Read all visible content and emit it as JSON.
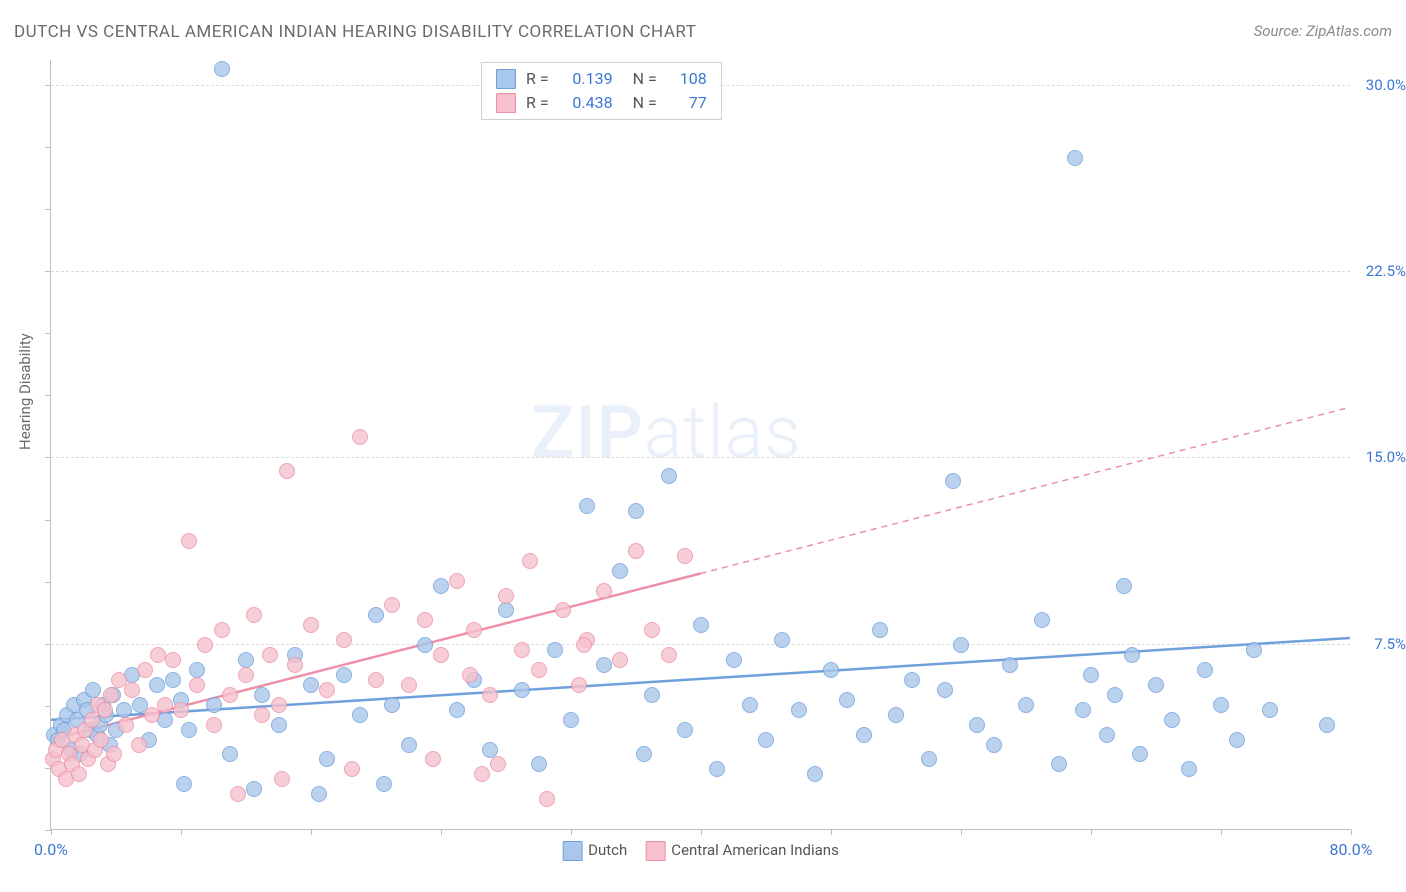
{
  "title": "DUTCH VS CENTRAL AMERICAN INDIAN HEARING DISABILITY CORRELATION CHART",
  "source": "Source: ZipAtlas.com",
  "ylabel": "Hearing Disability",
  "watermark": {
    "bold": "ZIP",
    "light": "atlas"
  },
  "chart": {
    "type": "scatter",
    "background_color": "#ffffff",
    "grid_color": "#dcdcdc",
    "axis_color": "#c0c0c0",
    "text_color": "#6b6b6b",
    "xlim": [
      0,
      80
    ],
    "ylim": [
      0,
      31
    ],
    "x_ticks": [
      0,
      8,
      16,
      24,
      32,
      40,
      48,
      56,
      64,
      72,
      80
    ],
    "x_labels": [
      {
        "value": 0,
        "text": "0.0%",
        "color": "#3b76d6"
      },
      {
        "value": 80,
        "text": "80.0%",
        "color": "#3b76d6"
      }
    ],
    "y_gridlines": [
      7.5,
      15.0,
      22.5,
      30.0
    ],
    "y_labels": [
      {
        "value": 7.5,
        "text": "7.5%",
        "color": "#3b76d6"
      },
      {
        "value": 15.0,
        "text": "15.0%",
        "color": "#3b76d6"
      },
      {
        "value": 22.5,
        "text": "22.5%",
        "color": "#3b76d6"
      },
      {
        "value": 30.0,
        "text": "30.0%",
        "color": "#3b76d6"
      }
    ],
    "y_ticks": [
      0,
      2.5,
      5,
      7.5,
      10,
      12.5,
      15,
      17.5,
      20,
      22.5,
      25,
      27.5,
      30
    ],
    "marker_radius": 8,
    "marker_opacity_fill": 0.35,
    "marker_opacity_stroke": 0.7,
    "series": [
      {
        "name": "Dutch",
        "color_fill": "#a9c7ea",
        "color_stroke": "#6fa0db",
        "R": "0.139",
        "N": "108",
        "regression": {
          "x1": 0,
          "y1": 4.4,
          "x2": 80,
          "y2": 7.7,
          "solid_to_x": 80
        },
        "points": [
          [
            0.2,
            3.8
          ],
          [
            0.4,
            3.6
          ],
          [
            0.6,
            4.2
          ],
          [
            0.8,
            4.0
          ],
          [
            1.0,
            4.6
          ],
          [
            1.2,
            3.2
          ],
          [
            1.4,
            5.0
          ],
          [
            1.6,
            4.4
          ],
          [
            1.8,
            3.0
          ],
          [
            2.0,
            5.2
          ],
          [
            2.2,
            4.8
          ],
          [
            2.4,
            4.0
          ],
          [
            2.6,
            5.6
          ],
          [
            2.8,
            3.8
          ],
          [
            3.0,
            4.2
          ],
          [
            3.2,
            5.0
          ],
          [
            3.4,
            4.6
          ],
          [
            3.6,
            3.4
          ],
          [
            3.8,
            5.4
          ],
          [
            4.0,
            4.0
          ],
          [
            4.5,
            4.8
          ],
          [
            5.0,
            6.2
          ],
          [
            5.5,
            5.0
          ],
          [
            6.0,
            3.6
          ],
          [
            6.5,
            5.8
          ],
          [
            7.0,
            4.4
          ],
          [
            7.5,
            6.0
          ],
          [
            8.0,
            5.2
          ],
          [
            8.5,
            4.0
          ],
          [
            9.0,
            6.4
          ],
          [
            10.0,
            5.0
          ],
          [
            11.0,
            3.0
          ],
          [
            12.0,
            6.8
          ],
          [
            13.0,
            5.4
          ],
          [
            14.0,
            4.2
          ],
          [
            15.0,
            7.0
          ],
          [
            16.0,
            5.8
          ],
          [
            17.0,
            2.8
          ],
          [
            18.0,
            6.2
          ],
          [
            19.0,
            4.6
          ],
          [
            20.0,
            8.6
          ],
          [
            21.0,
            5.0
          ],
          [
            22.0,
            3.4
          ],
          [
            23.0,
            7.4
          ],
          [
            24.0,
            9.8
          ],
          [
            25.0,
            4.8
          ],
          [
            26.0,
            6.0
          ],
          [
            27.0,
            3.2
          ],
          [
            28.0,
            8.8
          ],
          [
            29.0,
            5.6
          ],
          [
            30.0,
            2.6
          ],
          [
            31.0,
            7.2
          ],
          [
            32.0,
            4.4
          ],
          [
            33.0,
            13.0
          ],
          [
            34.0,
            6.6
          ],
          [
            35.0,
            10.4
          ],
          [
            36.0,
            12.8
          ],
          [
            36.5,
            3.0
          ],
          [
            37.0,
            5.4
          ],
          [
            38.0,
            14.2
          ],
          [
            39.0,
            4.0
          ],
          [
            40.0,
            8.2
          ],
          [
            41.0,
            2.4
          ],
          [
            42.0,
            6.8
          ],
          [
            43.0,
            5.0
          ],
          [
            44.0,
            3.6
          ],
          [
            45.0,
            7.6
          ],
          [
            46.0,
            4.8
          ],
          [
            47.0,
            2.2
          ],
          [
            48.0,
            6.4
          ],
          [
            49.0,
            5.2
          ],
          [
            50.0,
            3.8
          ],
          [
            51.0,
            8.0
          ],
          [
            52.0,
            4.6
          ],
          [
            53.0,
            6.0
          ],
          [
            54.0,
            2.8
          ],
          [
            55.0,
            5.6
          ],
          [
            55.5,
            14.0
          ],
          [
            56.0,
            7.4
          ],
          [
            57.0,
            4.2
          ],
          [
            58.0,
            3.4
          ],
          [
            59.0,
            6.6
          ],
          [
            60.0,
            5.0
          ],
          [
            61.0,
            8.4
          ],
          [
            62.0,
            2.6
          ],
          [
            63.0,
            27.0
          ],
          [
            63.5,
            4.8
          ],
          [
            64.0,
            6.2
          ],
          [
            65.0,
            3.8
          ],
          [
            65.5,
            5.4
          ],
          [
            66.0,
            9.8
          ],
          [
            66.5,
            7.0
          ],
          [
            67.0,
            3.0
          ],
          [
            68.0,
            5.8
          ],
          [
            69.0,
            4.4
          ],
          [
            70.0,
            2.4
          ],
          [
            71.0,
            6.4
          ],
          [
            72.0,
            5.0
          ],
          [
            73.0,
            3.6
          ],
          [
            74.0,
            7.2
          ],
          [
            75.0,
            4.8
          ],
          [
            29.5,
            30.4
          ],
          [
            10.5,
            30.6
          ],
          [
            78.5,
            4.2
          ],
          [
            8.2,
            1.8
          ],
          [
            12.5,
            1.6
          ],
          [
            16.5,
            1.4
          ],
          [
            20.5,
            1.8
          ]
        ]
      },
      {
        "name": "Central American Indians",
        "color_fill": "#f6c1cd",
        "color_stroke": "#ec8fa7",
        "R": "0.438",
        "N": "77",
        "regression": {
          "x1": 0,
          "y1": 3.6,
          "x2": 80,
          "y2": 17.0,
          "solid_to_x": 40
        },
        "points": [
          [
            0.1,
            2.8
          ],
          [
            0.3,
            3.2
          ],
          [
            0.5,
            2.4
          ],
          [
            0.7,
            3.6
          ],
          [
            0.9,
            2.0
          ],
          [
            1.1,
            3.0
          ],
          [
            1.3,
            2.6
          ],
          [
            1.5,
            3.8
          ],
          [
            1.7,
            2.2
          ],
          [
            1.9,
            3.4
          ],
          [
            2.1,
            4.0
          ],
          [
            2.3,
            2.8
          ],
          [
            2.5,
            4.4
          ],
          [
            2.7,
            3.2
          ],
          [
            2.9,
            5.0
          ],
          [
            3.1,
            3.6
          ],
          [
            3.3,
            4.8
          ],
          [
            3.5,
            2.6
          ],
          [
            3.7,
            5.4
          ],
          [
            3.9,
            3.0
          ],
          [
            4.2,
            6.0
          ],
          [
            4.6,
            4.2
          ],
          [
            5.0,
            5.6
          ],
          [
            5.4,
            3.4
          ],
          [
            5.8,
            6.4
          ],
          [
            6.2,
            4.6
          ],
          [
            6.6,
            7.0
          ],
          [
            7.0,
            5.0
          ],
          [
            7.5,
            6.8
          ],
          [
            8.0,
            4.8
          ],
          [
            8.5,
            11.6
          ],
          [
            9.0,
            5.8
          ],
          [
            9.5,
            7.4
          ],
          [
            10.0,
            4.2
          ],
          [
            10.5,
            8.0
          ],
          [
            11.0,
            5.4
          ],
          [
            11.5,
            1.4
          ],
          [
            12.0,
            6.2
          ],
          [
            12.5,
            8.6
          ],
          [
            13.0,
            4.6
          ],
          [
            13.5,
            7.0
          ],
          [
            14.0,
            5.0
          ],
          [
            14.5,
            14.4
          ],
          [
            15.0,
            6.6
          ],
          [
            16.0,
            8.2
          ],
          [
            17.0,
            5.6
          ],
          [
            18.0,
            7.6
          ],
          [
            19.0,
            15.8
          ],
          [
            20.0,
            6.0
          ],
          [
            21.0,
            9.0
          ],
          [
            22.0,
            5.8
          ],
          [
            23.0,
            8.4
          ],
          [
            24.0,
            7.0
          ],
          [
            25.0,
            10.0
          ],
          [
            25.8,
            6.2
          ],
          [
            26.0,
            8.0
          ],
          [
            27.0,
            5.4
          ],
          [
            28.0,
            9.4
          ],
          [
            29.0,
            7.2
          ],
          [
            29.5,
            10.8
          ],
          [
            30.0,
            6.4
          ],
          [
            31.5,
            8.8
          ],
          [
            32.5,
            5.8
          ],
          [
            33.0,
            7.6
          ],
          [
            34.0,
            9.6
          ],
          [
            35.0,
            6.8
          ],
          [
            36.0,
            11.2
          ],
          [
            37.0,
            8.0
          ],
          [
            38.0,
            7.0
          ],
          [
            39.0,
            11.0
          ],
          [
            27.5,
            2.6
          ],
          [
            30.5,
            1.2
          ],
          [
            32.8,
            7.4
          ],
          [
            14.2,
            2.0
          ],
          [
            18.5,
            2.4
          ],
          [
            23.5,
            2.8
          ],
          [
            26.5,
            2.2
          ]
        ]
      }
    ],
    "stats_legend": {
      "value_color": "#3b76d6",
      "label_color": "#555555"
    }
  },
  "bottom_legend": {
    "items": [
      {
        "label": "Dutch",
        "fill": "#a9c7ea",
        "stroke": "#6fa0db"
      },
      {
        "label": "Central American Indians",
        "fill": "#f6c1cd",
        "stroke": "#ec8fa7"
      }
    ]
  }
}
